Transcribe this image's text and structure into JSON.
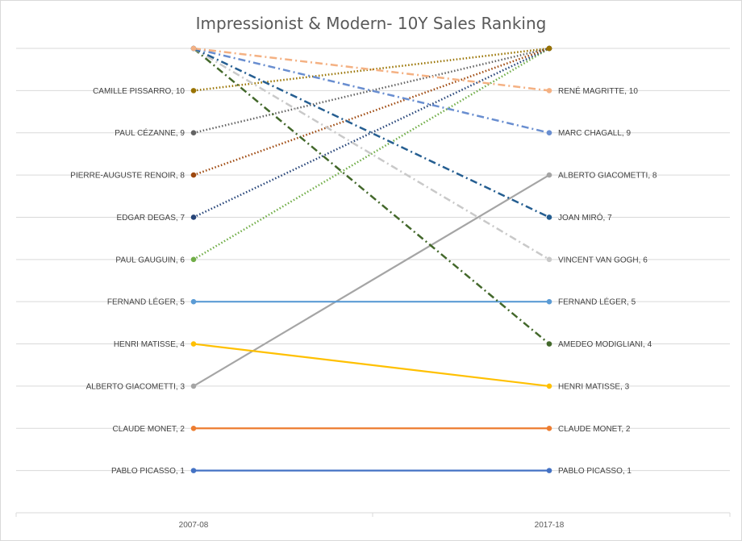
{
  "chart_data": {
    "type": "line",
    "title": "Impressionist & Modern- 10Y Sales Ranking",
    "categories": [
      "2007-08",
      "2017-18"
    ],
    "ylim": [
      0,
      11
    ],
    "grid": true,
    "series": [
      {
        "name": "PABLO PICASSO",
        "values": [
          1,
          1
        ],
        "color": "#4472c4",
        "dash": "solid",
        "left_label": "PABLO PICASSO, 1",
        "right_label": "PABLO PICASSO, 1"
      },
      {
        "name": "CLAUDE MONET",
        "values": [
          2,
          2
        ],
        "color": "#ed7d31",
        "dash": "solid",
        "left_label": "CLAUDE MONET, 2",
        "right_label": "CLAUDE MONET, 2"
      },
      {
        "name": "ALBERTO GIACOMETTI",
        "values": [
          3,
          8
        ],
        "color": "#a5a5a5",
        "dash": "solid",
        "left_label": "ALBERTO GIACOMETTI, 3",
        "right_label": "ALBERTO GIACOMETTI, 8"
      },
      {
        "name": "HENRI MATISSE",
        "values": [
          4,
          3
        ],
        "color": "#ffc000",
        "dash": "solid",
        "left_label": "HENRI MATISSE, 4",
        "right_label": "HENRI MATISSE, 3"
      },
      {
        "name": "FERNAND LÉGER",
        "values": [
          5,
          5
        ],
        "color": "#5b9bd5",
        "dash": "solid",
        "left_label": "FERNAND LÉGER, 5",
        "right_label": "FERNAND LÉGER, 5"
      },
      {
        "name": "PAUL GAUGUIN",
        "values": [
          6,
          11
        ],
        "color": "#70ad47",
        "dash": "dot",
        "left_label": "PAUL GAUGUIN, 6"
      },
      {
        "name": "EDGAR DEGAS",
        "values": [
          7,
          11
        ],
        "color": "#264478",
        "dash": "dot",
        "left_label": "EDGAR DEGAS, 7"
      },
      {
        "name": "PIERRE-AUGUSTE RENOIR",
        "values": [
          8,
          11
        ],
        "color": "#9e480e",
        "dash": "dot",
        "left_label": "PIERRE-AUGUSTE RENOIR, 8"
      },
      {
        "name": "PAUL CÉZANNE",
        "values": [
          9,
          11
        ],
        "color": "#636363",
        "dash": "dot",
        "left_label": "PAUL CÉZANNE, 9"
      },
      {
        "name": "CAMILLE PISSARRO",
        "values": [
          10,
          11
        ],
        "color": "#997300",
        "dash": "dot",
        "left_label": "CAMILLE PISSARRO, 10"
      },
      {
        "name": "AMEDEO MODIGLIANI",
        "values": [
          11,
          4
        ],
        "color": "#43682b",
        "dash": "dashdot",
        "right_label": "AMEDEO MODIGLIANI, 4"
      },
      {
        "name": "VINCENT VAN GOGH",
        "values": [
          11,
          6
        ],
        "color": "#c9c9c9",
        "dash": "dashdot",
        "right_label": "VINCENT VAN GOGH, 6"
      },
      {
        "name": "JOAN MIRÓ",
        "values": [
          11,
          7
        ],
        "color": "#255e91",
        "dash": "dashdot",
        "right_label": "JOAN MIRÓ, 7"
      },
      {
        "name": "MARC CHAGALL",
        "values": [
          11,
          9
        ],
        "color": "#698ed0",
        "dash": "dashdot",
        "right_label": "MARC CHAGALL, 9"
      },
      {
        "name": "RENÉ MAGRITTE",
        "values": [
          11,
          10
        ],
        "color": "#f4b183",
        "dash": "dashdot",
        "right_label": "RENÉ MAGRITTE, 10"
      }
    ]
  }
}
